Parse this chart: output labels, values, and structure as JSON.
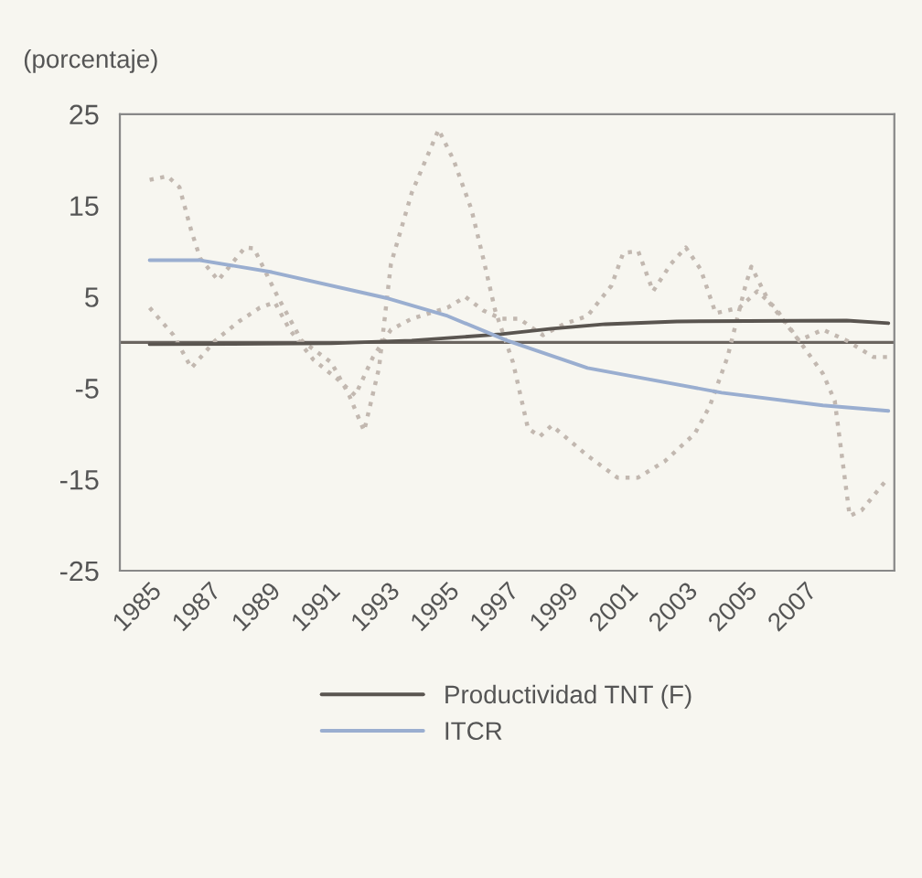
{
  "chart_data": {
    "type": "line",
    "ylabel": "(porcentaje)",
    "xlim": [
      1984,
      2010
    ],
    "xticks": [
      1985,
      1987,
      1989,
      1991,
      1993,
      1995,
      1997,
      1999,
      2001,
      2003,
      2005,
      2007
    ],
    "ylim": [
      -25,
      25
    ],
    "yticks": [
      -25,
      -15,
      -5,
      5,
      15,
      25
    ],
    "grid": false,
    "legend": "bottom",
    "marker": "none",
    "ref_lines": [
      {
        "axis": "y",
        "value": 0,
        "color": "#6b6560"
      }
    ],
    "series": [
      {
        "color": "#c2b8b0",
        "line_style": "dotted",
        "x": [
          1985,
          1985.6,
          1986,
          1986.4,
          1986.7,
          1987.3,
          1988.2,
          1988.5,
          1989.3,
          1990.1,
          1991.1,
          1991.7,
          1992.2,
          1992.7,
          1993.1,
          1993.8,
          1994.7,
          1995.2,
          1995.8,
          1996.2,
          1996.6,
          1997.2,
          1997.7,
          1998.1,
          1998.5,
          1999.7,
          2000.7,
          2001.4,
          2002.3,
          2003.3,
          2003.8,
          2004.4,
          2005,
          2005.2,
          2005.8,
          2006.8,
          2007.6,
          2008,
          2008.5,
          2008.9,
          2009.5,
          2009.8
        ],
        "values": [
          17.8,
          18.2,
          17,
          12.2,
          9.2,
          6.8,
          10.4,
          10.3,
          5,
          0.2,
          -2.2,
          -5.8,
          -9.7,
          -2.8,
          8.6,
          16.4,
          23.3,
          20,
          14.6,
          9.2,
          3.5,
          -2.2,
          -9.4,
          -10.3,
          -9.1,
          -12.4,
          -14.8,
          -14.8,
          -13,
          -10,
          -7,
          -1.6,
          6.2,
          8.3,
          4.4,
          0.2,
          -3.4,
          -6.4,
          -19,
          -18.4,
          -16,
          -14.8
        ]
      },
      {
        "color": "#c2b8b0",
        "line_style": "dotted",
        "x": [
          1985,
          1985.8,
          1986.4,
          1987.2,
          1988,
          1988.7,
          1989.2,
          1989.7,
          1990.5,
          1991.3,
          1991.9,
          1992.5,
          1993.1,
          1993.8,
          1995,
          1995.6,
          1996.2,
          1996.8,
          1997.4,
          1998.2,
          1998.9,
          1999.7,
          2000.5,
          2000.9,
          2001.4,
          2001.9,
          2002.5,
          2003,
          2003.5,
          2004,
          2004.8,
          2005.4,
          2006,
          2006.8,
          2007.6,
          2008.4,
          2009.3,
          2009.8
        ],
        "values": [
          3.8,
          0.8,
          -2.8,
          0.2,
          2.3,
          3.8,
          4.4,
          1.4,
          -1.9,
          -4,
          -5.8,
          -1.6,
          1.4,
          2.6,
          3.8,
          5,
          3.5,
          2.6,
          2.6,
          0.8,
          2,
          2.9,
          6.2,
          9.8,
          10,
          5.6,
          8.6,
          10.4,
          8,
          3.2,
          3.8,
          5.6,
          3.8,
          0.2,
          1.4,
          0.2,
          -1.6,
          -1.6
        ]
      },
      {
        "name": "Productividad TNT (F)",
        "color": "#5a5550",
        "line_style": "solid",
        "x": [
          1985,
          1991.1,
          1993.8,
          1996.8,
          1998.5,
          2000.3,
          2002.7,
          2008.4,
          2009.8
        ],
        "values": [
          -0.2,
          -0.1,
          0.2,
          0.9,
          1.5,
          2.0,
          2.3,
          2.4,
          2.1
        ]
      },
      {
        "name": "ITCR",
        "color": "#9aaed0",
        "line_style": "solid",
        "x": [
          1985,
          1986.7,
          1989.1,
          1992.9,
          1995,
          1997,
          1999.7,
          2001.7,
          2004.2,
          2007.6,
          2009.8
        ],
        "values": [
          9.0,
          9.0,
          7.7,
          4.9,
          2.9,
          0.2,
          -2.8,
          -4.0,
          -5.5,
          -6.9,
          -7.5
        ]
      }
    ]
  }
}
